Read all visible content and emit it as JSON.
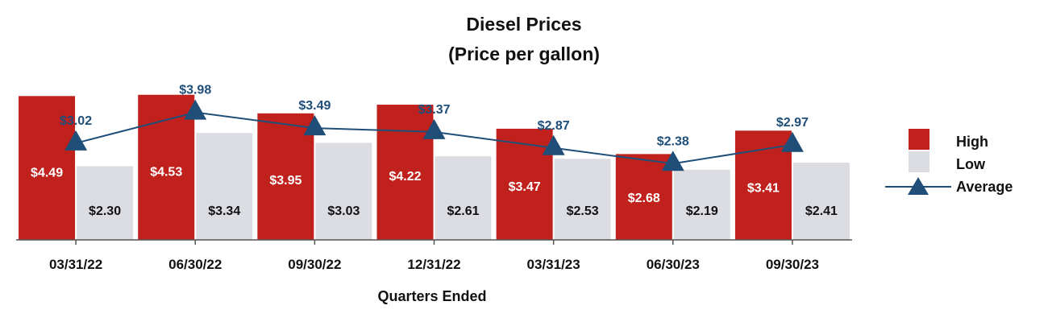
{
  "chart_data": {
    "type": "bar",
    "title": "Diesel Prices",
    "subtitle": "(Price per gallon)",
    "xlabel": "Quarters Ended",
    "ylabel": "",
    "ylim": [
      0,
      4.9
    ],
    "grid": false,
    "legend_position": "right",
    "categories": [
      "03/31/22",
      "06/30/22",
      "09/30/22",
      "12/31/22",
      "03/31/23",
      "06/30/23",
      "09/30/23"
    ],
    "series": [
      {
        "name": "High",
        "kind": "bar",
        "color": "#c0211d",
        "values": [
          4.49,
          4.53,
          3.95,
          4.22,
          3.47,
          2.68,
          3.41
        ],
        "labels": [
          "$4.49",
          "$4.53",
          "$3.95",
          "$4.22",
          "$3.47",
          "$2.68",
          "$3.41"
        ]
      },
      {
        "name": "Low",
        "kind": "bar",
        "color": "#dcdde3",
        "values": [
          2.3,
          3.34,
          3.03,
          2.61,
          2.53,
          2.19,
          2.41
        ],
        "labels": [
          "$2.30",
          "$3.34",
          "$3.03",
          "$2.61",
          "$2.53",
          "$2.19",
          "$2.41"
        ]
      },
      {
        "name": "Average",
        "kind": "line",
        "marker": "triangle",
        "color": "#1f4e79",
        "values": [
          3.02,
          3.98,
          3.49,
          3.37,
          2.87,
          2.38,
          2.97
        ],
        "labels": [
          "$3.02",
          "$3.98",
          "$3.49",
          "$3.37",
          "$2.87",
          "$2.38",
          "$2.97"
        ]
      }
    ]
  }
}
